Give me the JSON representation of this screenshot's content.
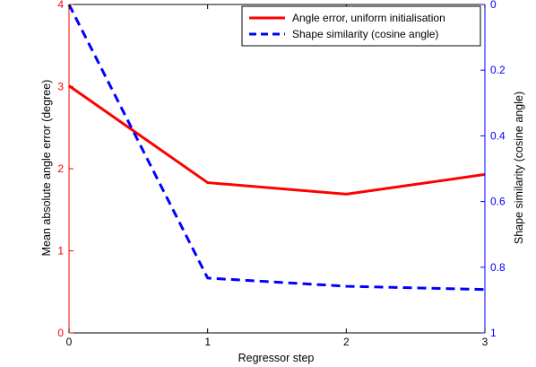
{
  "chart_data": {
    "type": "line",
    "title": "",
    "xlabel": "Regressor step",
    "ylabel_left": "Mean absolute angle error (degree)",
    "ylabel_right": "Shape similarity (cosine angle)",
    "x": [
      0,
      1,
      2,
      3
    ],
    "xlim": [
      0,
      3
    ],
    "x_ticks": [
      "0",
      "1",
      "2",
      "3"
    ],
    "ylim_left": [
      0,
      4
    ],
    "y_ticks_left": [
      "0",
      "1",
      "2",
      "3",
      "4"
    ],
    "ylim_right": [
      1,
      0
    ],
    "y_ticks_right": [
      "0",
      "0.2",
      "0.4",
      "0.6",
      "0.8",
      "1"
    ],
    "right_axis_reversed": true,
    "grid": false,
    "legend_position": "top-right",
    "series": [
      {
        "name": "Angle error, uniform initialisation",
        "axis": "left",
        "color": "#ff0000",
        "line_style": "solid",
        "values": [
          3.01,
          1.83,
          1.69,
          1.93
        ]
      },
      {
        "name": "Shape similarity (cosine angle)",
        "axis": "right",
        "color": "#0000ff",
        "line_style": "dashed",
        "values": [
          0.0,
          0.833,
          0.858,
          0.868
        ]
      }
    ],
    "axis_colors": {
      "left": "#ff0000",
      "right": "#0000ff",
      "bottom": "#000000"
    }
  }
}
